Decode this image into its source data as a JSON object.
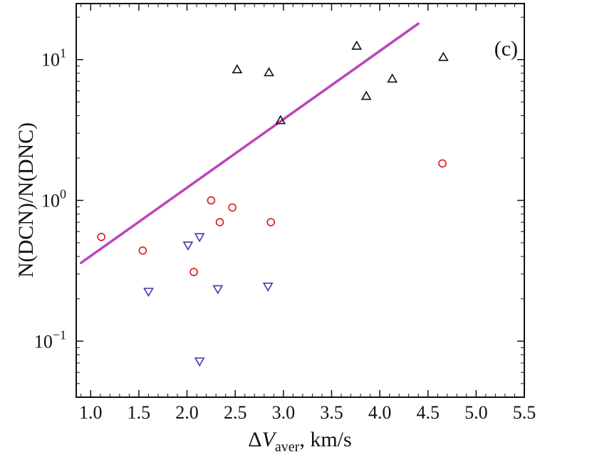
{
  "chart_data": {
    "type": "scatter",
    "panel_label": "(c)",
    "xlabel": {
      "prefix": "Δ",
      "var": "V",
      "sub": "aver",
      "suffix": ", km/s"
    },
    "ylabel": "N(DCN)/N(DNC)",
    "xlim": [
      0.85,
      5.5
    ],
    "ylim": [
      0.04,
      25
    ],
    "yscale": "log",
    "x_ticks": [
      "1.0",
      "1.5",
      "2.0",
      "2.5",
      "3.0",
      "3.5",
      "4.0",
      "4.5",
      "5.0",
      "5.5"
    ],
    "x_tick_values": [
      1.0,
      1.5,
      2.0,
      2.5,
      3.0,
      3.5,
      4.0,
      4.5,
      5.0,
      5.5
    ],
    "y_ticks": [
      {
        "value": 0.1,
        "base": "10",
        "exp": "−1"
      },
      {
        "value": 1,
        "base": "10",
        "exp": "0"
      },
      {
        "value": 10,
        "base": "10",
        "exp": "1"
      }
    ],
    "series": [
      {
        "name": "triangles-up",
        "marker": "triangle-up",
        "color": "#111111",
        "points": [
          [
            2.52,
            8.5
          ],
          [
            2.85,
            8.1
          ],
          [
            2.97,
            3.7
          ],
          [
            3.76,
            12.5
          ],
          [
            3.86,
            5.5
          ],
          [
            4.13,
            7.3
          ],
          [
            4.66,
            10.4
          ]
        ]
      },
      {
        "name": "circles",
        "marker": "circle",
        "color": "#dd2222",
        "points": [
          [
            1.11,
            0.55
          ],
          [
            1.54,
            0.44
          ],
          [
            2.07,
            0.31
          ],
          [
            2.25,
            1.0
          ],
          [
            2.34,
            0.7
          ],
          [
            2.47,
            0.89
          ],
          [
            2.87,
            0.7
          ],
          [
            4.65,
            1.83
          ]
        ]
      },
      {
        "name": "triangles-down",
        "marker": "triangle-down",
        "color": "#3a3aa8",
        "points": [
          [
            1.6,
            0.225
          ],
          [
            2.01,
            0.48
          ],
          [
            2.13,
            0.55
          ],
          [
            2.13,
            0.072
          ],
          [
            2.32,
            0.235
          ],
          [
            2.84,
            0.245
          ]
        ]
      }
    ],
    "fit_line": {
      "color": "#bb44bb",
      "from": [
        0.9,
        0.36
      ],
      "to": [
        4.4,
        18.0
      ]
    }
  }
}
